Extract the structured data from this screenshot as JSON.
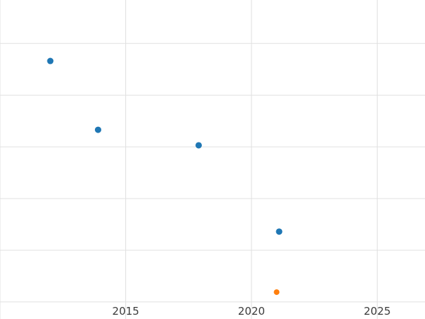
{
  "chart_data": {
    "type": "scatter",
    "title": "",
    "xlabel": "",
    "ylabel": "",
    "grid": true,
    "legend": "none",
    "xlim": [
      2010,
      2026.9
    ],
    "ylim": [
      -0.33,
      5.84
    ],
    "x_tick_labels": [
      {
        "value": 2015,
        "label": "2015"
      },
      {
        "value": 2020,
        "label": "2020"
      },
      {
        "value": 2025,
        "label": "2025"
      }
    ],
    "x_gridlines": [
      2010,
      2015,
      2020,
      2025
    ],
    "y_gridlines": [
      0,
      1,
      2,
      3,
      4,
      5
    ],
    "y_axis_tick_labels_visible": false,
    "series": [
      {
        "name": "blue-series",
        "color": "#1f77b4",
        "marker_radius": 4.5,
        "points": [
          {
            "x": 2012.0,
            "y": 4.66
          },
          {
            "x": 2013.9,
            "y": 3.33
          },
          {
            "x": 2017.9,
            "y": 3.03
          },
          {
            "x": 2021.1,
            "y": 1.36
          }
        ]
      },
      {
        "name": "orange-series",
        "color": "#ff7f0e",
        "marker_radius": 4,
        "points": [
          {
            "x": 2021.0,
            "y": 0.19
          }
        ]
      }
    ],
    "colors": {
      "gridline": "#e0e0e0",
      "tick_label": "#3b3b3b",
      "background": "#ffffff"
    }
  }
}
